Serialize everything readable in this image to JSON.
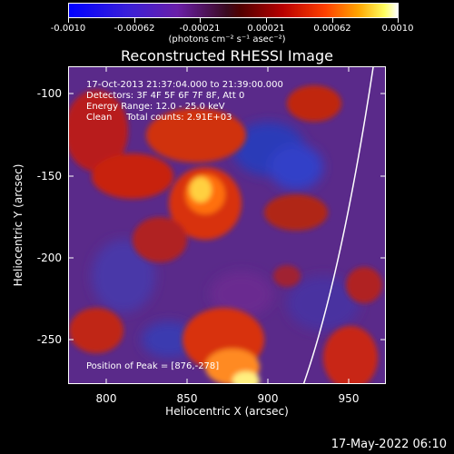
{
  "colorbar": {
    "ticks": [
      "-0.0010",
      "-0.00062",
      "-0.00021",
      "0.00021",
      "0.00062",
      "0.0010"
    ],
    "units": "(photons cm⁻² s⁻¹ asec⁻²)"
  },
  "title": "Reconstructed RHESSI Image",
  "annotations": {
    "time": "17-Oct-2013 21:37:04.000 to 21:39:00.000",
    "detectors": "Detectors: 3F 4F 5F 6F 7F 8F, Att 0",
    "energy": "Energy Range: 12.0 - 25.0 keV",
    "clean": "Clean     Total counts: 2.91E+03",
    "peak": "Position of Peak = [876,-278]"
  },
  "axes": {
    "xlabel": "Heliocentric X (arcsec)",
    "ylabel": "Heliocentric Y (arcsec)",
    "xticks": [
      "800",
      "850",
      "900",
      "950"
    ],
    "yticks": [
      "-100",
      "-150",
      "-200",
      "-250"
    ]
  },
  "footer": {
    "timestamp": "17-May-2022 06:10"
  }
}
